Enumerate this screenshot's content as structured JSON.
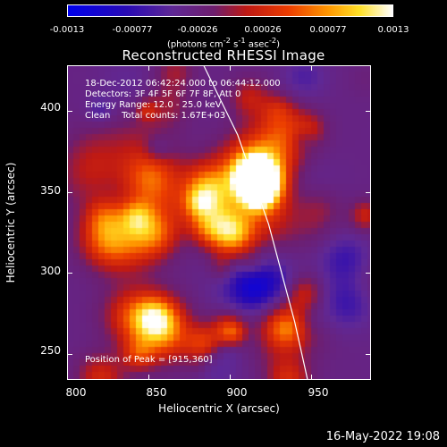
{
  "chart_data": {
    "type": "heatmap",
    "title": "Reconstructed RHESSI Image",
    "xlabel": "Heliocentric X (arcsec)",
    "ylabel": "Heliocentric Y (arcsec)",
    "xlim": [
      800,
      987
    ],
    "ylim": [
      234,
      428
    ],
    "xticks": [
      "800",
      "850",
      "900",
      "950"
    ],
    "xtick_values": [
      800,
      850,
      900,
      950
    ],
    "yticks": [
      "250",
      "300",
      "350",
      "400"
    ],
    "ytick_values": [
      250,
      300,
      350,
      400
    ],
    "colorbar": {
      "ticks": [
        "-0.0013",
        "-0.00077",
        "-0.00026",
        "0.00026",
        "0.00077",
        "0.0013"
      ],
      "tick_values": [
        -0.0013,
        -0.00077,
        -0.00026,
        0.00026,
        0.00077,
        0.0013
      ],
      "units_text": "(photons cm",
      "units_sup1": "-2",
      "units_mid": " s",
      "units_sup2": "-1",
      "units_end": " asec",
      "units_sup3": "-2",
      "units_close": ")",
      "colormap": "blue-purple-red-yellow-white"
    },
    "annotations": {
      "time_range": "18-Dec-2012 06:42:24.000 to 06:44:12.000",
      "detectors": "Detectors: 3F 4F 5F 6F 7F 8F, Att 0",
      "energy": "Energy Range: 12.0 - 25.0 keV",
      "clean": "Clean    Total counts: 1.67E+03",
      "peak": "Position of Peak = [915,360]"
    },
    "peak": [
      915,
      360
    ],
    "limb_curve": [
      [
        884,
        428
      ],
      [
        905,
        385
      ],
      [
        924,
        330
      ],
      [
        940,
        270
      ],
      [
        948,
        234
      ]
    ],
    "grid": false
  },
  "footer": {
    "timestamp": "16-May-2022 19:08"
  },
  "colors": {
    "background": "#000000",
    "text": "#ffffff",
    "limb": "#ffffff"
  }
}
